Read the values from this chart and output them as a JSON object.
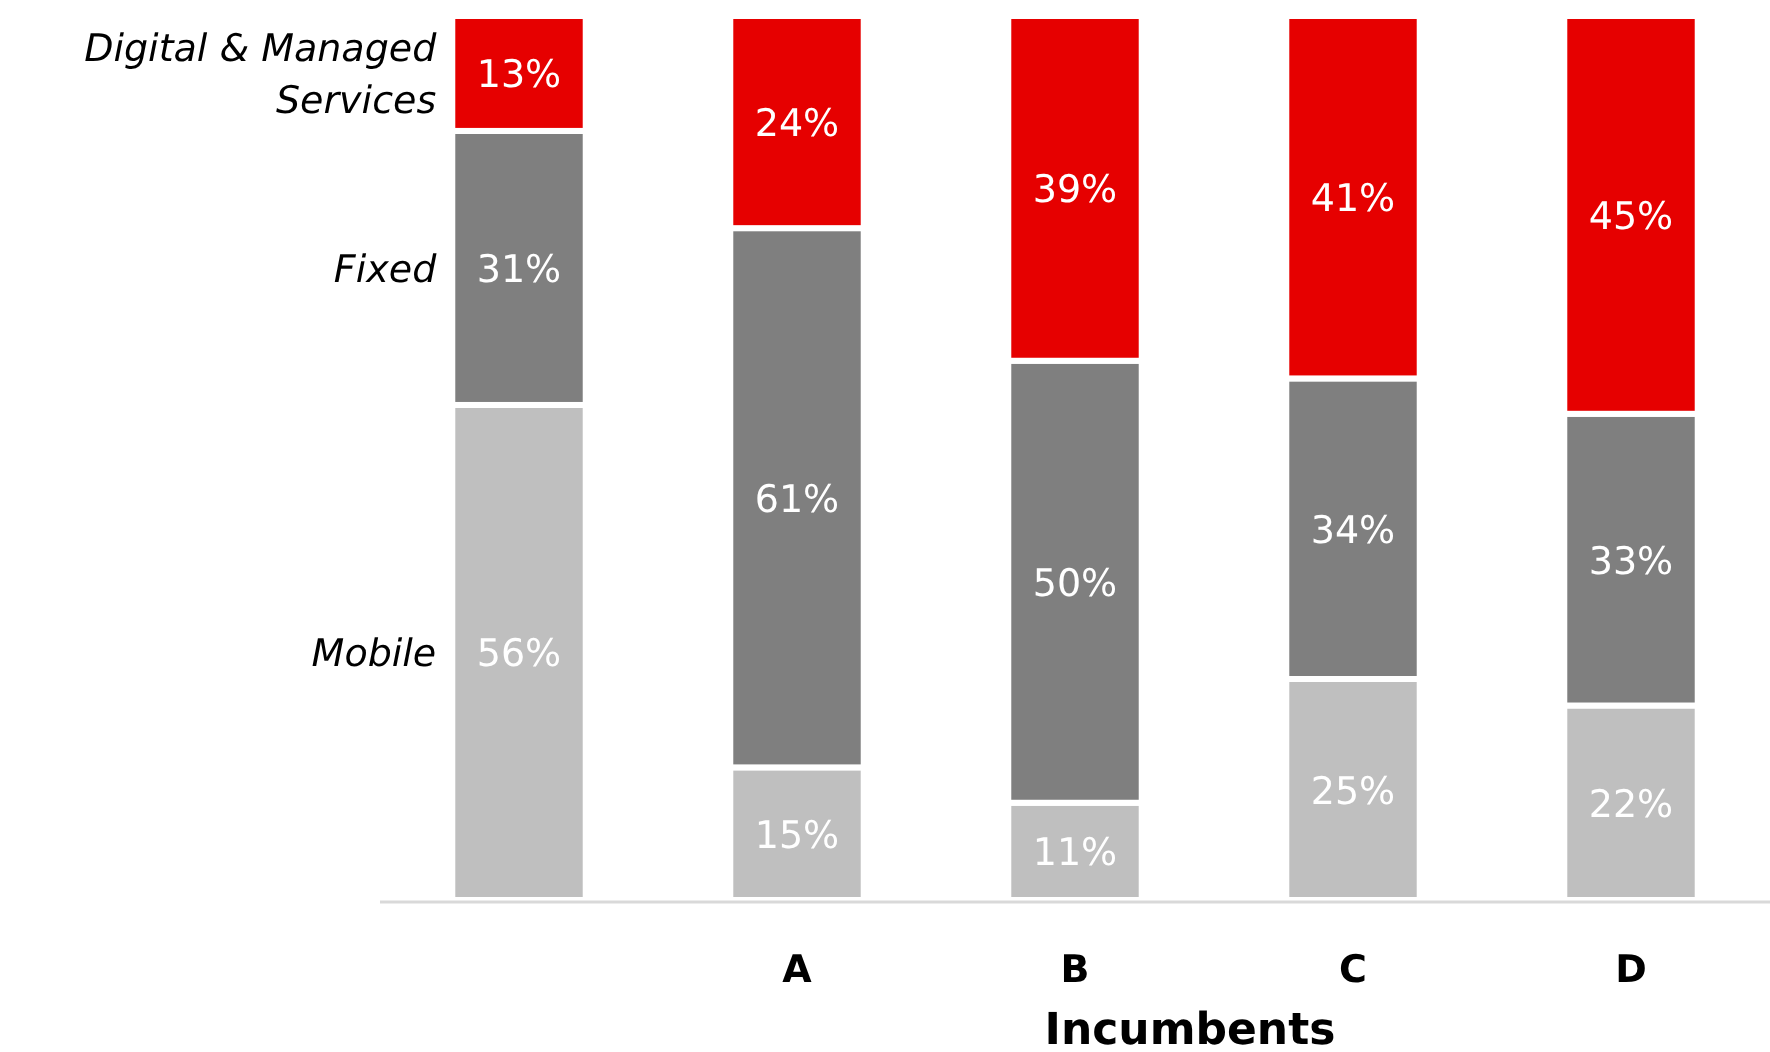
{
  "chart_data": {
    "type": "bar",
    "stacked": true,
    "xlabel": "Incumbents",
    "categories": [
      null,
      "A",
      "B",
      "C",
      "D"
    ],
    "series": [
      {
        "name": "Mobile",
        "color": "#bfbfbf",
        "values": [
          56,
          15,
          11,
          25,
          22
        ],
        "value_labels": [
          "56%",
          "15%",
          "11%",
          "25%",
          "22%"
        ]
      },
      {
        "name": "Fixed",
        "color": "#7f7f7f",
        "values": [
          31,
          61,
          50,
          34,
          33
        ],
        "value_labels": [
          "31%",
          "61%",
          "50%",
          "34%",
          "33%"
        ]
      },
      {
        "name": "Digital & Managed Services",
        "color": "#e60000",
        "values": [
          13,
          24,
          39,
          41,
          45
        ],
        "value_labels": [
          "13%",
          "24%",
          "39%",
          "41%",
          "45%"
        ]
      }
    ]
  }
}
